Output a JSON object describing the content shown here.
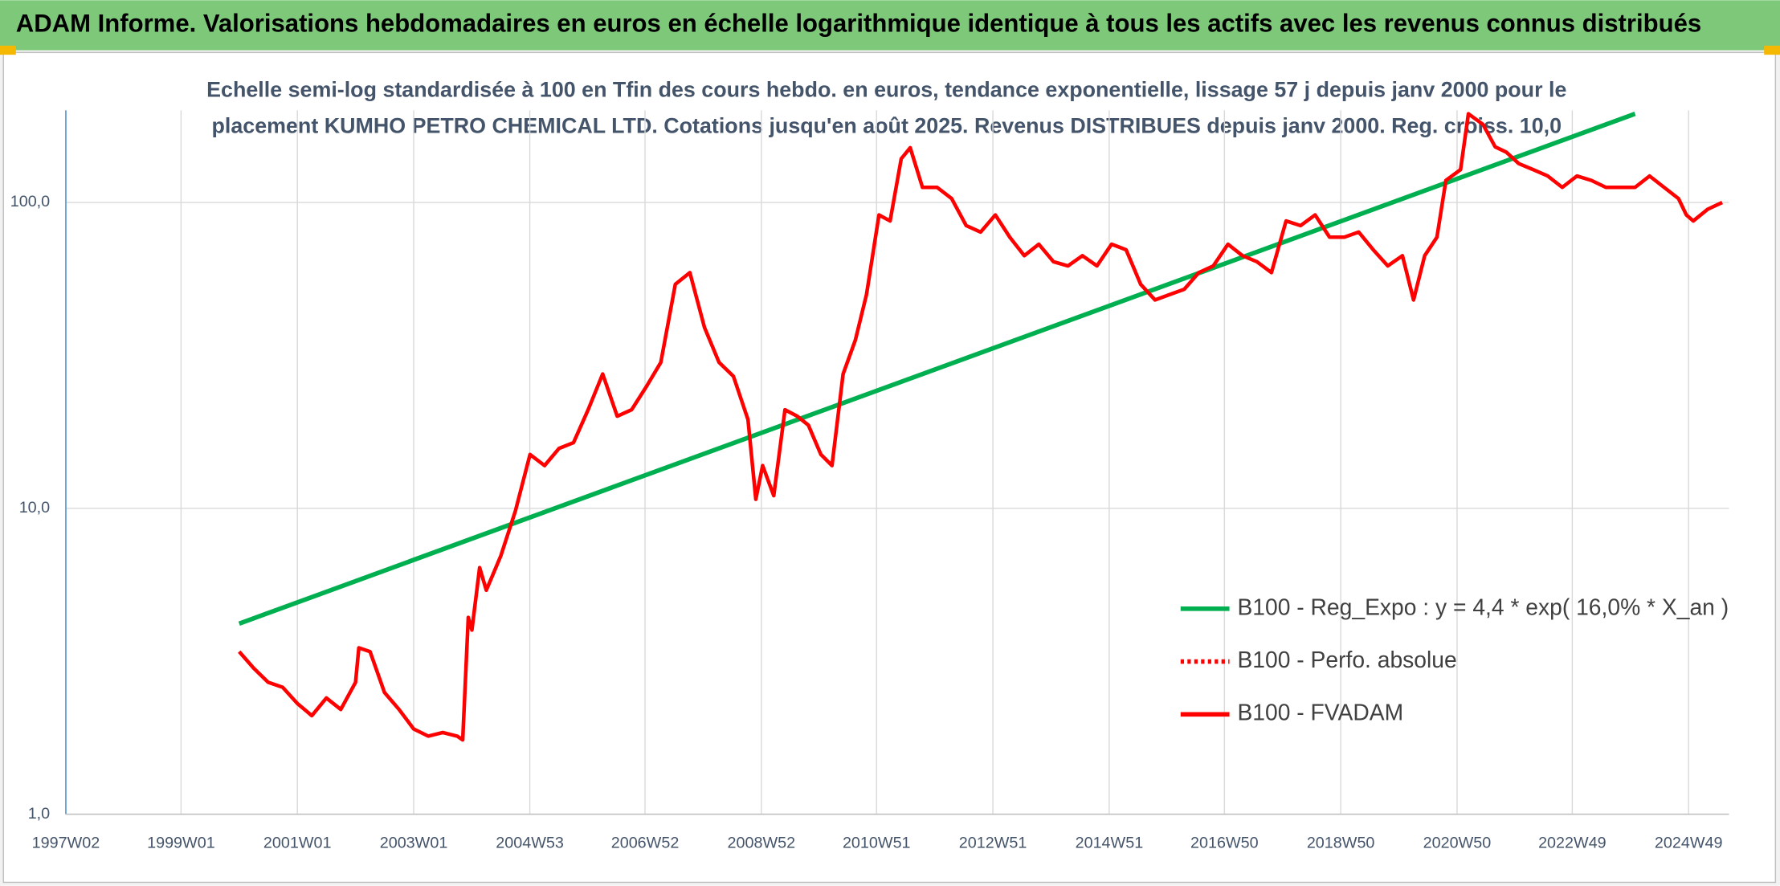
{
  "chart_data": {
    "type": "line",
    "title": "ADAM Informe. Valorisations hebdomadaires en euros en échelle logarithmique identique à tous les actifs avec les revenus connus distribués",
    "subtitle": [
      "Echelle semi-log standardisée à 100 en Tfin des cours hebdo. en euros, tendance exponentielle, lissage 57 j depuis janv 2000 pour le",
      "placement KUMHO PETRO CHEMICAL LTD. Cotations jusqu'en août 2025. Revenus DISTRIBUES depuis janv 2000. Reg. croiss. 10,0"
    ],
    "log_scale": true,
    "grid": true,
    "legend": "lower right",
    "xlim": [
      "1997W02",
      "2025W33"
    ],
    "xticks": [
      "1997W02",
      "1999W01",
      "2001W01",
      "2003W01",
      "2004W53",
      "2006W52",
      "2008W52",
      "2010W51",
      "2012W51",
      "2014W51",
      "2016W50",
      "2018W50",
      "2020W50",
      "2022W49",
      "2024W49"
    ],
    "ylim": [
      1,
      200
    ],
    "yticks": [
      {
        "value": 1,
        "label": "1,0"
      },
      {
        "value": 10,
        "label": "10,0"
      },
      {
        "value": 100,
        "label": "100,0"
      }
    ],
    "series": [
      {
        "name": "B100 - Reg_Expo : y = 4,4 * exp( 16,0% *  X_an )",
        "color": "#00b050",
        "style": "solid",
        "x": [
          "2000W01",
          "2024W01"
        ],
        "values": [
          4.2,
          195
        ]
      },
      {
        "name": "B100 - Perfo. absolue",
        "color": "#ff0000",
        "style": "dotted",
        "x": [],
        "values": []
      },
      {
        "name": "B100 - FVADAM",
        "color": "#ff0000",
        "style": "solid",
        "x": [
          "2000W01",
          "2000W14",
          "2000W27",
          "2000W40",
          "2001W01",
          "2001W14",
          "2001W27",
          "2001W40",
          "2002W01",
          "2002W04",
          "2002W14",
          "2002W27",
          "2002W40",
          "2003W01",
          "2003W14",
          "2003W27",
          "2003W40",
          "2003W45",
          "2003W50",
          "2004W01",
          "2004W08",
          "2004W14",
          "2004W27",
          "2004W40",
          "2005W01",
          "2005W14",
          "2005W27",
          "2005W40",
          "2006W01",
          "2006W14",
          "2006W27",
          "2006W40",
          "2007W01",
          "2007W14",
          "2007W27",
          "2007W40",
          "2008W01",
          "2008W14",
          "2008W27",
          "2008W40",
          "2008W47",
          "2009W01",
          "2009W11",
          "2009W21",
          "2009W32",
          "2009W42",
          "2010W01",
          "2010W11",
          "2010W21",
          "2010W32",
          "2010W42",
          "2011W01",
          "2011W11",
          "2011W21",
          "2011W29",
          "2011W40",
          "2012W01",
          "2012W14",
          "2012W27",
          "2012W40",
          "2013W01",
          "2013W14",
          "2013W27",
          "2013W40",
          "2014W01",
          "2014W14",
          "2014W27",
          "2014W40",
          "2015W01",
          "2015W14",
          "2015W27",
          "2015W40",
          "2016W01",
          "2016W14",
          "2016W27",
          "2016W40",
          "2017W01",
          "2017W14",
          "2017W27",
          "2017W40",
          "2018W01",
          "2018W14",
          "2018W27",
          "2018W40",
          "2019W01",
          "2019W14",
          "2019W27",
          "2019W40",
          "2020W01",
          "2020W11",
          "2020W21",
          "2020W32",
          "2020W40",
          "2021W01",
          "2021W08",
          "2021W21",
          "2021W32",
          "2021W42",
          "2022W01",
          "2022W14",
          "2022W27",
          "2022W40",
          "2023W01",
          "2023W14",
          "2023W27",
          "2023W40",
          "2024W01",
          "2024W14",
          "2024W27",
          "2024W40",
          "2024W47",
          "2025W01",
          "2025W14",
          "2025W27"
        ],
        "values": [
          3.4,
          3.0,
          2.7,
          2.6,
          2.3,
          2.1,
          2.4,
          2.2,
          2.7,
          3.5,
          3.4,
          2.5,
          2.2,
          1.9,
          1.8,
          1.85,
          1.8,
          1.75,
          4.4,
          4.0,
          6.4,
          5.4,
          7.0,
          9.8,
          15,
          13.8,
          15.7,
          16.4,
          21,
          27.5,
          20,
          21,
          25,
          30,
          54,
          59,
          39,
          30,
          27,
          19.5,
          10.7,
          13.8,
          11,
          21,
          20,
          18.7,
          15,
          13.8,
          27.5,
          35.5,
          50,
          91,
          87,
          139,
          151,
          112,
          112,
          103,
          84,
          80,
          91,
          77,
          67,
          73,
          64,
          62,
          67,
          62,
          73,
          70,
          54,
          48,
          50,
          52,
          59,
          62,
          73,
          67,
          64,
          59,
          87,
          84,
          91,
          77,
          77,
          80,
          70,
          62,
          67,
          48,
          67,
          77,
          118,
          128,
          195,
          180,
          152,
          146,
          134,
          128,
          122,
          112,
          122,
          118,
          112,
          112,
          112,
          122,
          112,
          103,
          91,
          87,
          95,
          100
        ]
      }
    ]
  }
}
